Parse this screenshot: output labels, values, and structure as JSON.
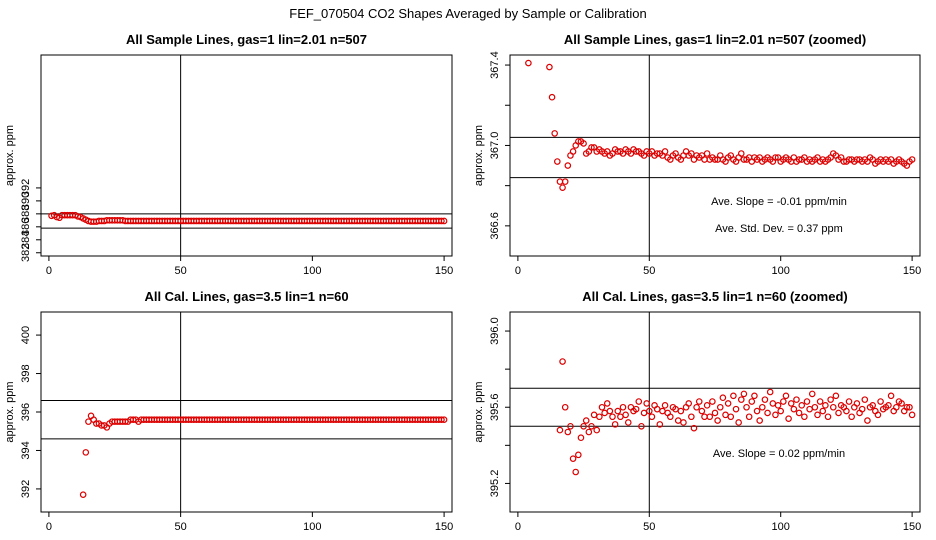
{
  "figure_title": "FEF_070504  CO2 Shapes Averaged by Sample or Calibration",
  "colors": {
    "points": "#dd0000",
    "lines": "#000000"
  },
  "chart_data": [
    {
      "type": "scatter",
      "title": "All Sample Lines, gas=1 lin=2.01 n=507",
      "xlabel": "",
      "ylabel": "approx. ppm",
      "xlim": [
        -3,
        153
      ],
      "ylim": [
        361.5,
        392.5
      ],
      "xticks": [
        0,
        50,
        100,
        150
      ],
      "yticks": [
        362,
        364,
        366,
        368,
        370,
        372
      ],
      "yticklabels": [
        "382",
        "384",
        "386",
        "388",
        "390",
        "392"
      ],
      "vlines": [
        50
      ],
      "hlines": [
        365.8,
        368.0
      ],
      "annotations": [],
      "x": [
        1,
        2,
        3,
        4,
        5,
        6,
        7,
        8,
        9,
        10,
        11,
        12,
        13,
        14,
        15,
        16,
        17,
        18,
        19,
        20,
        21,
        22,
        23,
        24,
        25,
        26,
        27,
        28,
        29,
        30,
        31,
        32,
        33,
        34,
        35,
        36,
        37,
        38,
        39,
        40,
        41,
        42,
        43,
        44,
        45,
        46,
        47,
        48,
        49,
        50,
        51,
        52,
        53,
        54,
        55,
        56,
        57,
        58,
        59,
        60,
        61,
        62,
        63,
        64,
        65,
        66,
        67,
        68,
        69,
        70,
        71,
        72,
        73,
        74,
        75,
        76,
        77,
        78,
        79,
        80,
        81,
        82,
        83,
        84,
        85,
        86,
        87,
        88,
        89,
        90,
        91,
        92,
        93,
        94,
        95,
        96,
        97,
        98,
        99,
        100,
        101,
        102,
        103,
        104,
        105,
        106,
        107,
        108,
        109,
        110,
        111,
        112,
        113,
        114,
        115,
        116,
        117,
        118,
        119,
        120,
        121,
        122,
        123,
        124,
        125,
        126,
        127,
        128,
        129,
        130,
        131,
        132,
        133,
        134,
        135,
        136,
        137,
        138,
        139,
        140,
        141,
        142,
        143,
        144,
        145,
        146,
        147,
        148,
        149,
        150
      ],
      "y": [
        367.7,
        367.8,
        367.5,
        367.4,
        367.8,
        367.8,
        367.8,
        367.8,
        367.8,
        367.8,
        367.6,
        367.5,
        367.3,
        367.1,
        366.9,
        366.8,
        366.8,
        366.8,
        366.9,
        366.9,
        366.9,
        367.0,
        367.0,
        367.0,
        367.0,
        367.0,
        367.0,
        367.0,
        366.9,
        366.9,
        366.9,
        366.9,
        366.9,
        366.9,
        366.9,
        366.9,
        366.9,
        366.9,
        366.9,
        366.9,
        366.9,
        366.9,
        366.9,
        366.9,
        366.9,
        366.9,
        366.9,
        366.9,
        366.9,
        366.9,
        366.9,
        366.9,
        366.9,
        366.9,
        366.9,
        366.9,
        366.9,
        366.9,
        366.9,
        366.9,
        366.9,
        366.9,
        366.9,
        366.9,
        366.9,
        366.9,
        366.9,
        366.9,
        366.9,
        366.9,
        366.9,
        366.9,
        366.9,
        366.9,
        366.9,
        366.9,
        366.9,
        366.9,
        366.9,
        366.9,
        366.9,
        366.9,
        366.9,
        366.9,
        366.9,
        366.9,
        366.9,
        366.9,
        366.9,
        366.9,
        366.9,
        366.9,
        366.9,
        366.9,
        366.9,
        366.9,
        366.9,
        366.9,
        366.9,
        366.9,
        366.9,
        366.9,
        366.9,
        366.9,
        366.9,
        366.9,
        366.9,
        366.9,
        366.9,
        366.9,
        366.9,
        366.9,
        366.9,
        366.9,
        366.9,
        366.9,
        366.9,
        366.9,
        366.9,
        366.9,
        366.9,
        366.9,
        366.9,
        366.9,
        366.9,
        366.9,
        366.9,
        366.9,
        366.9,
        366.9,
        366.9,
        366.9,
        366.9,
        366.9,
        366.9,
        366.9,
        366.9,
        366.9,
        366.9,
        366.9,
        366.9,
        366.9,
        366.9,
        366.9,
        366.9,
        366.9,
        366.9,
        366.9,
        366.9,
        366.9
      ]
    },
    {
      "type": "scatter",
      "title": "All Sample Lines, gas=1 lin=2.01 n=507 (zoomed)",
      "xlabel": "",
      "ylabel": "approx. ppm",
      "xlim": [
        -3,
        153
      ],
      "ylim": [
        366.45,
        367.45
      ],
      "xticks": [
        0,
        50,
        100,
        150
      ],
      "yticks": [
        366.6,
        366.8,
        367.0,
        367.2,
        367.4
      ],
      "yticklabels": [
        "366.6",
        "",
        "367.0",
        "",
        "367.4"
      ],
      "vlines": [
        50
      ],
      "hlines": [
        366.84,
        367.04
      ],
      "annotations": [
        "Ave. Slope =  -0.01  ppm/min",
        "Ave. Std. Dev. =  0.37  ppm"
      ],
      "x": [
        4,
        12,
        13,
        14,
        15,
        16,
        17,
        18,
        19,
        20,
        21,
        22,
        23,
        24,
        25,
        26,
        27,
        28,
        29,
        30,
        31,
        32,
        33,
        34,
        35,
        36,
        37,
        38,
        39,
        40,
        41,
        42,
        43,
        44,
        45,
        46,
        47,
        48,
        49,
        50,
        51,
        52,
        53,
        54,
        55,
        56,
        57,
        58,
        59,
        60,
        61,
        62,
        63,
        64,
        65,
        66,
        67,
        68,
        69,
        70,
        71,
        72,
        73,
        74,
        75,
        76,
        77,
        78,
        79,
        80,
        81,
        82,
        83,
        84,
        85,
        86,
        87,
        88,
        89,
        90,
        91,
        92,
        93,
        94,
        95,
        96,
        97,
        98,
        99,
        100,
        101,
        102,
        103,
        104,
        105,
        106,
        107,
        108,
        109,
        110,
        111,
        112,
        113,
        114,
        115,
        116,
        117,
        118,
        119,
        120,
        121,
        122,
        123,
        124,
        125,
        126,
        127,
        128,
        129,
        130,
        131,
        132,
        133,
        134,
        135,
        136,
        137,
        138,
        139,
        140,
        141,
        142,
        143,
        144,
        145,
        146,
        147,
        148,
        149,
        150
      ],
      "y": [
        367.41,
        367.39,
        367.24,
        367.06,
        366.92,
        366.82,
        366.79,
        366.82,
        366.9,
        366.95,
        366.97,
        367.0,
        367.02,
        367.02,
        367.01,
        366.96,
        366.97,
        366.99,
        366.99,
        366.97,
        366.98,
        366.97,
        366.96,
        366.97,
        366.95,
        366.96,
        366.98,
        366.97,
        366.97,
        366.96,
        366.98,
        366.97,
        366.96,
        366.98,
        366.97,
        366.97,
        366.96,
        366.95,
        366.97,
        366.96,
        366.97,
        366.95,
        366.96,
        366.96,
        366.95,
        366.97,
        366.94,
        366.93,
        366.95,
        366.96,
        366.94,
        366.93,
        366.95,
        366.97,
        366.95,
        366.96,
        366.93,
        366.95,
        366.94,
        366.95,
        366.93,
        366.96,
        366.93,
        366.94,
        366.93,
        366.93,
        366.95,
        366.93,
        366.92,
        366.94,
        366.95,
        366.93,
        366.92,
        366.94,
        366.96,
        366.93,
        366.93,
        366.94,
        366.92,
        366.94,
        366.93,
        366.94,
        366.92,
        366.93,
        366.94,
        366.93,
        366.92,
        366.94,
        366.94,
        366.92,
        366.93,
        366.94,
        366.93,
        366.92,
        366.94,
        366.92,
        366.93,
        366.93,
        366.94,
        366.92,
        366.93,
        366.92,
        366.93,
        366.94,
        366.92,
        366.93,
        366.92,
        366.93,
        366.94,
        366.96,
        366.95,
        366.93,
        366.94,
        366.92,
        366.92,
        366.93,
        366.93,
        366.92,
        366.93,
        366.93,
        366.92,
        366.93,
        366.92,
        366.94,
        366.93,
        366.91,
        366.92,
        366.93,
        366.92,
        366.93,
        366.92,
        366.93,
        366.91,
        366.92,
        366.93,
        366.92,
        366.91,
        366.9,
        366.92,
        366.93
      ]
    },
    {
      "type": "scatter",
      "title": "All Cal. Lines, gas=3.5 lin=1 n=60",
      "xlabel": "",
      "ylabel": "approx. ppm",
      "xlim": [
        -3,
        153
      ],
      "ylim": [
        390.8,
        401.2
      ],
      "xticks": [
        0,
        50,
        100,
        150
      ],
      "yticks": [
        392,
        394,
        396,
        398,
        400
      ],
      "yticklabels": [
        "392",
        "394",
        "396",
        "398",
        "400"
      ],
      "vlines": [
        50
      ],
      "hlines": [
        394.6,
        396.6
      ],
      "annotations": [],
      "x": [
        13,
        14,
        15,
        16,
        17,
        18,
        19,
        20,
        21,
        22,
        23,
        24,
        25,
        26,
        27,
        28,
        29,
        30,
        31,
        32,
        33,
        34,
        35,
        36,
        37,
        38,
        39,
        40,
        41,
        42,
        43,
        44,
        45,
        46,
        47,
        48,
        49,
        50,
        51,
        52,
        53,
        54,
        55,
        56,
        57,
        58,
        59,
        60,
        61,
        62,
        63,
        64,
        65,
        66,
        67,
        68,
        69,
        70,
        71,
        72,
        73,
        74,
        75,
        76,
        77,
        78,
        79,
        80,
        81,
        82,
        83,
        84,
        85,
        86,
        87,
        88,
        89,
        90,
        91,
        92,
        93,
        94,
        95,
        96,
        97,
        98,
        99,
        100,
        101,
        102,
        103,
        104,
        105,
        106,
        107,
        108,
        109,
        110,
        111,
        112,
        113,
        114,
        115,
        116,
        117,
        118,
        119,
        120,
        121,
        122,
        123,
        124,
        125,
        126,
        127,
        128,
        129,
        130,
        131,
        132,
        133,
        134,
        135,
        136,
        137,
        138,
        139,
        140,
        141,
        142,
        143,
        144,
        145,
        146,
        147,
        148,
        149,
        150
      ],
      "y": [
        391.7,
        393.9,
        395.5,
        395.8,
        395.6,
        395.4,
        395.4,
        395.3,
        395.3,
        395.2,
        395.4,
        395.5,
        395.5,
        395.5,
        395.5,
        395.5,
        395.5,
        395.5,
        395.6,
        395.6,
        395.6,
        395.5,
        395.6,
        395.6,
        395.6,
        395.6,
        395.6,
        395.6,
        395.6,
        395.6,
        395.6,
        395.6,
        395.6,
        395.6,
        395.6,
        395.6,
        395.6,
        395.6,
        395.6,
        395.6,
        395.6,
        395.6,
        395.6,
        395.6,
        395.6,
        395.6,
        395.6,
        395.6,
        395.6,
        395.6,
        395.6,
        395.6,
        395.6,
        395.6,
        395.6,
        395.6,
        395.6,
        395.6,
        395.6,
        395.6,
        395.6,
        395.6,
        395.6,
        395.6,
        395.6,
        395.6,
        395.6,
        395.6,
        395.6,
        395.6,
        395.6,
        395.6,
        395.6,
        395.6,
        395.6,
        395.6,
        395.6,
        395.6,
        395.6,
        395.6,
        395.6,
        395.6,
        395.6,
        395.6,
        395.6,
        395.6,
        395.6,
        395.6,
        395.6,
        395.6,
        395.6,
        395.6,
        395.6,
        395.6,
        395.6,
        395.6,
        395.6,
        395.6,
        395.6,
        395.6,
        395.6,
        395.6,
        395.6,
        395.6,
        395.6,
        395.6,
        395.6,
        395.6,
        395.6,
        395.6,
        395.6,
        395.6,
        395.6,
        395.6,
        395.6,
        395.6,
        395.6,
        395.6,
        395.6,
        395.6,
        395.6,
        395.6,
        395.6,
        395.6,
        395.6,
        395.6,
        395.6,
        395.6,
        395.6,
        395.6,
        395.6,
        395.6,
        395.6,
        395.6,
        395.6,
        395.6,
        395.6,
        395.6
      ]
    },
    {
      "type": "scatter",
      "title": "All Cal. Lines, gas=3.5 lin=1 n=60 (zoomed)",
      "xlabel": "",
      "ylabel": "approx. ppm",
      "xlim": [
        -3,
        153
      ],
      "ylim": [
        395.05,
        396.1
      ],
      "xticks": [
        0,
        50,
        100,
        150
      ],
      "yticks": [
        395.2,
        395.4,
        395.6,
        395.8,
        396.0
      ],
      "yticklabels": [
        "395.2",
        "",
        "395.6",
        "",
        "396.0"
      ],
      "vlines": [
        50
      ],
      "hlines": [
        395.5,
        395.7
      ],
      "annotations": [
        "Ave. Slope =  0.02  ppm/min"
      ],
      "x": [
        16,
        17,
        18,
        19,
        20,
        21,
        22,
        23,
        24,
        25,
        26,
        27,
        28,
        29,
        30,
        31,
        32,
        33,
        34,
        35,
        36,
        37,
        38,
        39,
        40,
        41,
        42,
        43,
        44,
        45,
        46,
        47,
        48,
        49,
        50,
        51,
        52,
        53,
        54,
        55,
        56,
        57,
        58,
        59,
        60,
        61,
        62,
        63,
        64,
        65,
        66,
        67,
        68,
        69,
        70,
        71,
        72,
        73,
        74,
        75,
        76,
        77,
        78,
        79,
        80,
        81,
        82,
        83,
        84,
        85,
        86,
        87,
        88,
        89,
        90,
        91,
        92,
        93,
        94,
        95,
        96,
        97,
        98,
        99,
        100,
        101,
        102,
        103,
        104,
        105,
        106,
        107,
        108,
        109,
        110,
        111,
        112,
        113,
        114,
        115,
        116,
        117,
        118,
        119,
        120,
        121,
        122,
        123,
        124,
        125,
        126,
        127,
        128,
        129,
        130,
        131,
        132,
        133,
        134,
        135,
        136,
        137,
        138,
        139,
        140,
        141,
        142,
        143,
        144,
        145,
        146,
        147,
        148,
        149,
        150
      ],
      "y": [
        395.48,
        395.84,
        395.6,
        395.47,
        395.5,
        395.33,
        395.26,
        395.35,
        395.44,
        395.5,
        395.53,
        395.47,
        395.5,
        395.56,
        395.48,
        395.55,
        395.6,
        395.57,
        395.62,
        395.58,
        395.55,
        395.51,
        395.58,
        395.55,
        395.6,
        395.56,
        395.52,
        395.6,
        395.58,
        395.59,
        395.63,
        395.5,
        395.57,
        395.62,
        395.58,
        395.55,
        395.61,
        395.59,
        395.51,
        395.58,
        395.61,
        395.57,
        395.55,
        395.6,
        395.59,
        395.53,
        395.58,
        395.52,
        395.6,
        395.62,
        395.55,
        395.49,
        395.6,
        395.63,
        395.58,
        395.55,
        395.61,
        395.55,
        395.63,
        395.57,
        395.53,
        395.6,
        395.65,
        395.56,
        395.62,
        395.55,
        395.66,
        395.59,
        395.52,
        395.64,
        395.67,
        395.6,
        395.55,
        395.63,
        395.66,
        395.58,
        395.53,
        395.6,
        395.64,
        395.57,
        395.68,
        395.62,
        395.56,
        395.61,
        395.58,
        395.63,
        395.66,
        395.54,
        395.62,
        395.59,
        395.64,
        395.57,
        395.61,
        395.55,
        395.63,
        395.59,
        395.67,
        395.6,
        395.56,
        395.63,
        395.58,
        395.61,
        395.55,
        395.64,
        395.6,
        395.66,
        395.57,
        395.61,
        395.6,
        395.58,
        395.63,
        395.55,
        395.6,
        395.62,
        395.57,
        395.59,
        395.64,
        395.53,
        395.6,
        395.61,
        395.58,
        395.56,
        395.63,
        395.59,
        395.6,
        395.61,
        395.66,
        395.58,
        395.6,
        395.63,
        395.62,
        395.58,
        395.6,
        395.6,
        395.56
      ]
    }
  ]
}
